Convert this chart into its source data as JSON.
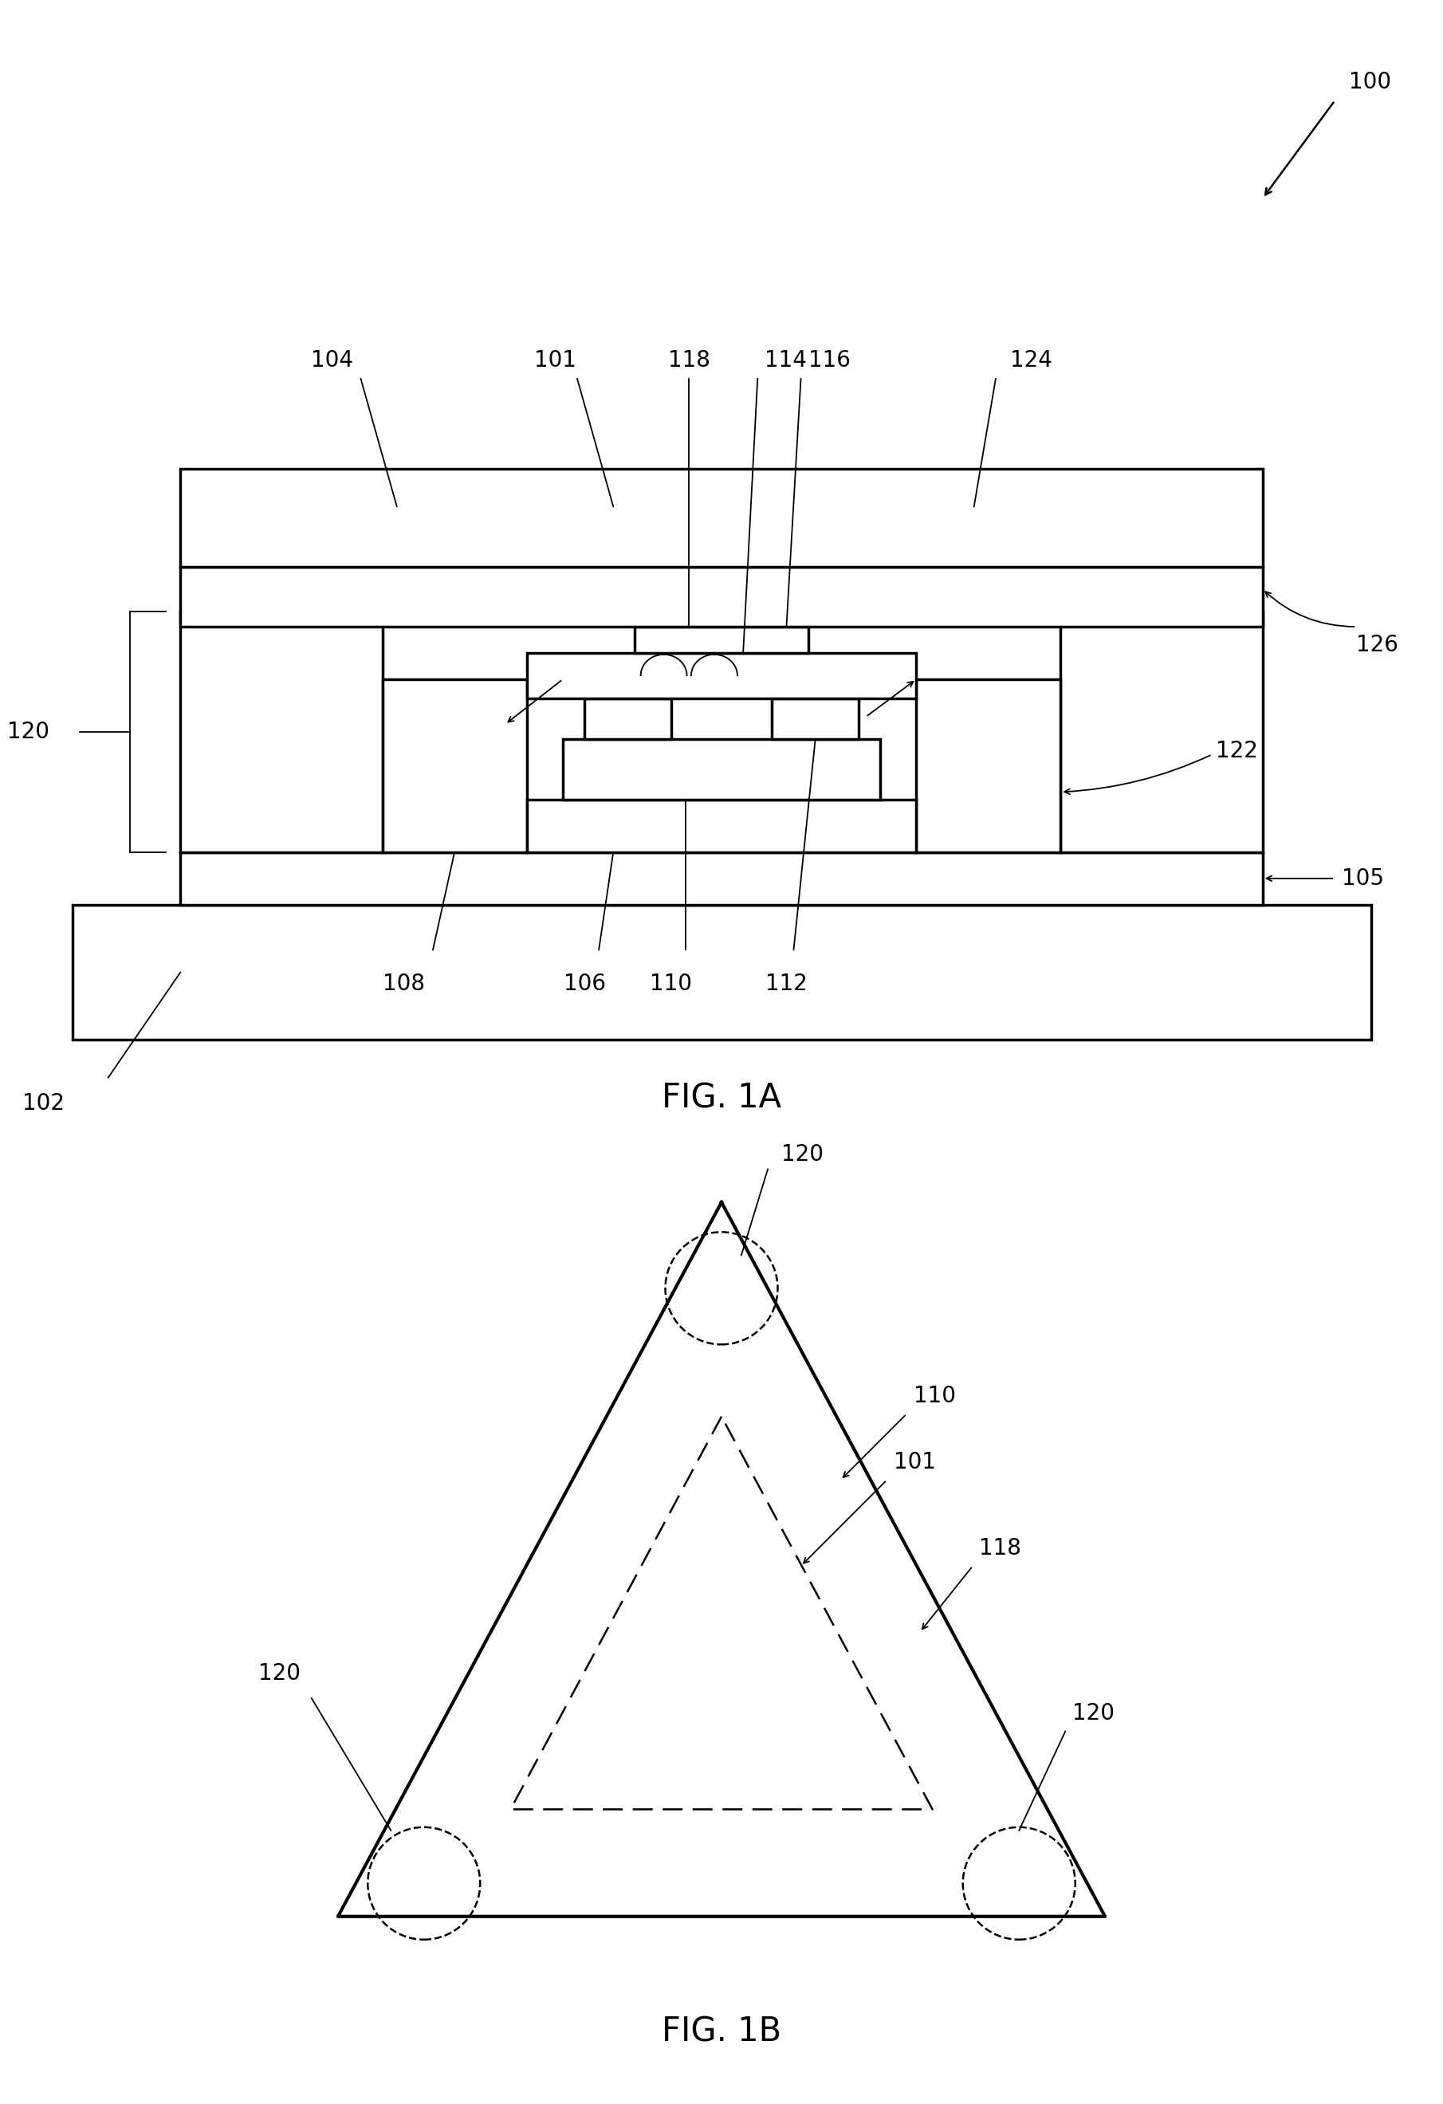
{
  "fig_width": 18.1,
  "fig_height": 26.39,
  "bg_color": "#ffffff",
  "line_color": "#000000",
  "lw_thick": 2.5,
  "lw_med": 1.8,
  "lw_thin": 1.3,
  "fig1a_label": "FIG. 1A",
  "fig1b_label": "FIG. 1B",
  "label_fontsize": 30,
  "ref_fontsize": 20
}
